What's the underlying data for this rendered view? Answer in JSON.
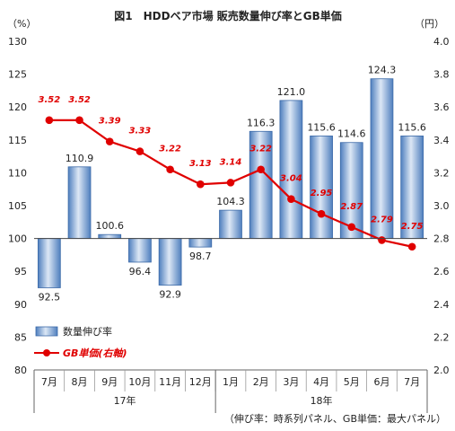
{
  "chart_data": {
    "type": "bar+line",
    "title": "図1　HDDベア市場 販売数量伸び率とGB単価",
    "y_left_unit": "（%）",
    "y_right_unit": "（円）",
    "ylim_left": [
      80,
      130
    ],
    "yticks_left": [
      80,
      85,
      90,
      95,
      100,
      105,
      110,
      115,
      120,
      125,
      130
    ],
    "ylim_right": [
      2.0,
      4.0
    ],
    "yticks_right": [
      "2.0",
      "2.2",
      "2.4",
      "2.6",
      "2.8",
      "3.0",
      "3.2",
      "3.4",
      "3.6",
      "3.8",
      "4.0"
    ],
    "bar_baseline": 100,
    "categories": [
      "7月",
      "8月",
      "9月",
      "10月",
      "11月",
      "12月",
      "1月",
      "2月",
      "3月",
      "4月",
      "5月",
      "6月",
      "7月"
    ],
    "year_groups": [
      {
        "label": "17年",
        "start": 0,
        "end": 5
      },
      {
        "label": "18年",
        "start": 6,
        "end": 12
      }
    ],
    "series": [
      {
        "name": "数量伸び率",
        "type": "bar",
        "axis": "left",
        "values": [
          92.5,
          110.9,
          100.6,
          96.4,
          92.9,
          98.7,
          104.3,
          116.3,
          121.0,
          115.6,
          114.6,
          124.3,
          115.6
        ],
        "labels": [
          "92.5",
          "110.9",
          "100.6",
          "96.4",
          "92.9",
          "98.7",
          "104.3",
          "116.3",
          "121.0",
          "115.6",
          "114.6",
          "124.3",
          "115.6"
        ]
      },
      {
        "name": "GB単価(右軸)",
        "type": "line",
        "axis": "right",
        "values": [
          3.52,
          3.52,
          3.39,
          3.33,
          3.22,
          3.13,
          3.14,
          3.22,
          3.04,
          2.95,
          2.87,
          2.79,
          2.75
        ],
        "labels": [
          "3.52",
          "3.52",
          "3.39",
          "3.33",
          "3.22",
          "3.13",
          "3.14",
          "3.22",
          "3.04",
          "2.95",
          "2.87",
          "2.79",
          "2.75"
        ]
      }
    ],
    "legend_position": "lower-left",
    "footnote": "（伸び率：時系列パネル、GB単価：最大パネル）",
    "colors": {
      "bar_light": "#dce7f5",
      "bar_mid": "#8eb0da",
      "bar_dark": "#4f7fbe",
      "bar_edge": "#3c6aa8",
      "line": "#e00000"
    }
  }
}
